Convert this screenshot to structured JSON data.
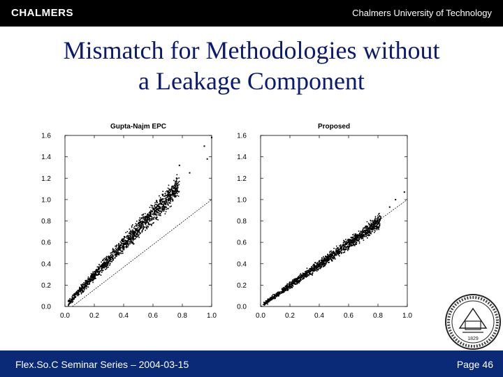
{
  "header": {
    "logo_text": "CHALMERS",
    "university": "Chalmers University of Technology"
  },
  "slide": {
    "title_line1": "Mismatch for Methodologies without",
    "title_line2": "a Leakage Component"
  },
  "footer": {
    "series": "Flex.So.C Seminar Series – 2004-03-15",
    "page": "Page 46"
  },
  "seal": {
    "text": "1829"
  },
  "chart_data": [
    {
      "type": "scatter",
      "title": "Gupta-Najm EPC",
      "xlabel": "",
      "ylabel": "",
      "xlim": [
        0.0,
        1.0
      ],
      "ylim": [
        0.0,
        1.6
      ],
      "xticks": [
        "0.0",
        "0.2",
        "0.4",
        "0.6",
        "0.8",
        "1.0"
      ],
      "yticks": [
        "0.0",
        "0.2",
        "0.4",
        "0.6",
        "0.8",
        "1.0",
        "1.2",
        "1.4",
        "1.6"
      ],
      "grid": false,
      "reference_line": {
        "x": [
          0.05,
          1.0
        ],
        "y": [
          0.0,
          1.0
        ]
      },
      "trend": {
        "slope": 1.45,
        "spread": 0.05
      },
      "outliers": [
        [
          0.95,
          1.5
        ],
        [
          1.0,
          1.58
        ],
        [
          0.97,
          1.38
        ],
        [
          0.78,
          1.32
        ],
        [
          0.85,
          1.25
        ]
      ],
      "points_x_range": [
        0.02,
        0.78
      ],
      "color": "#000000"
    },
    {
      "type": "scatter",
      "title": "Proposed",
      "xlabel": "",
      "ylabel": "",
      "xlim": [
        0.0,
        1.0
      ],
      "ylim": [
        0.0,
        1.6
      ],
      "xticks": [
        "0.0",
        "0.2",
        "0.4",
        "0.6",
        "0.8",
        "1.0"
      ],
      "yticks": [
        "0.0",
        "0.2",
        "0.4",
        "0.6",
        "0.8",
        "1.0",
        "1.2",
        "1.4",
        "1.6"
      ],
      "grid": false,
      "reference_line": {
        "x": [
          0.0,
          1.0
        ],
        "y": [
          0.0,
          1.0
        ]
      },
      "trend": {
        "slope": 0.98,
        "spread": 0.03
      },
      "outliers": [
        [
          0.98,
          1.07
        ],
        [
          0.92,
          1.0
        ],
        [
          0.88,
          0.93
        ]
      ],
      "points_x_range": [
        0.02,
        0.82
      ],
      "color": "#000000"
    }
  ]
}
